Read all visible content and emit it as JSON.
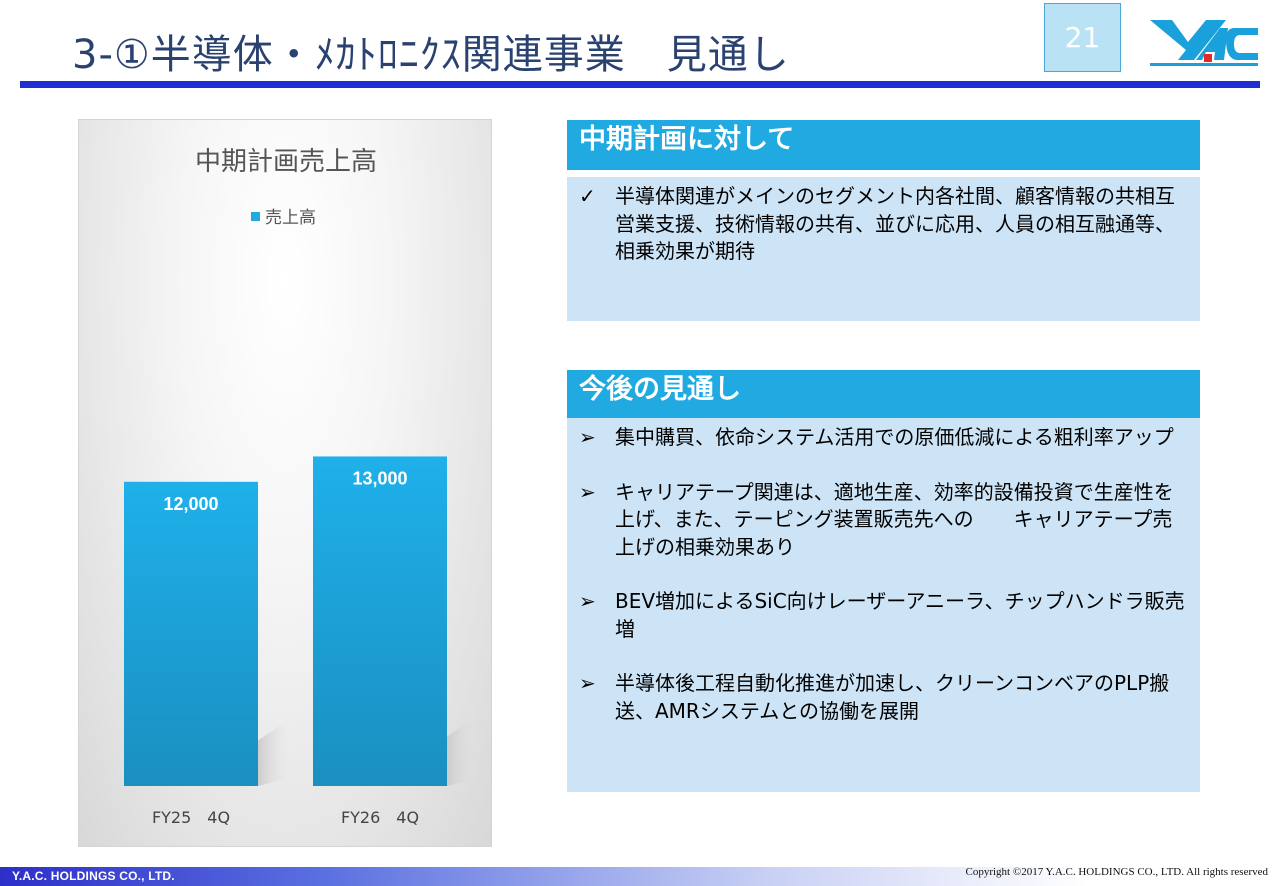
{
  "header": {
    "title": "3-①半導体・ﾒｶﾄﾛﾆｸｽ関連事業　見通し",
    "page_number": "21"
  },
  "colors": {
    "accent": "#21a9e1",
    "rule": "#1f2fd4",
    "title_text": "#2a4270",
    "panel_body": "#cde4f6"
  },
  "chart_data": {
    "type": "bar",
    "title": "中期計画売上高",
    "categories": [
      "FY25　4Q",
      "FY26　4Q"
    ],
    "series": [
      {
        "name": "売上高",
        "values": [
          12000,
          13000
        ],
        "labels": [
          "12,000",
          "13,000"
        ]
      }
    ],
    "legend": "top",
    "grid": false,
    "color": "#21a9e1"
  },
  "plan_section": {
    "heading": "中期計画に対して",
    "bullets": [
      {
        "marker": "✓",
        "text": "半導体関連がメインのセグメント内各社間、顧客情報の共相互営業支援、技術情報の共有、並びに応用、人員の相互融通等、相乗効果が期待"
      }
    ]
  },
  "outlook_section": {
    "heading": "今後の見通し",
    "bullets": [
      {
        "marker": "➢",
        "text": "集中購買、依命システム活用での原価低減による粗利率アップ"
      },
      {
        "marker": "➢",
        "text": "キャリアテープ関連は、適地生産、効率的設備投資で生産性を上げ、また、テーピング装置販売先への　　キャリアテープ売上げの相乗効果あり"
      },
      {
        "marker": "➢",
        "text": "BEV増加によるSiC向けレーザーアニーラ、チップハンドラ販売増"
      },
      {
        "marker": "➢",
        "text": "半導体後工程自動化推進が加速し、クリーンコンベアのPLP搬送、AMRシステムとの協働を展開"
      }
    ]
  },
  "footer": {
    "company": "Y.A.C. HOLDINGS CO., LTD.",
    "copyright": "Copyright ©2017 Y.A.C. HOLDINGS CO., LTD.  All rights reserved"
  }
}
